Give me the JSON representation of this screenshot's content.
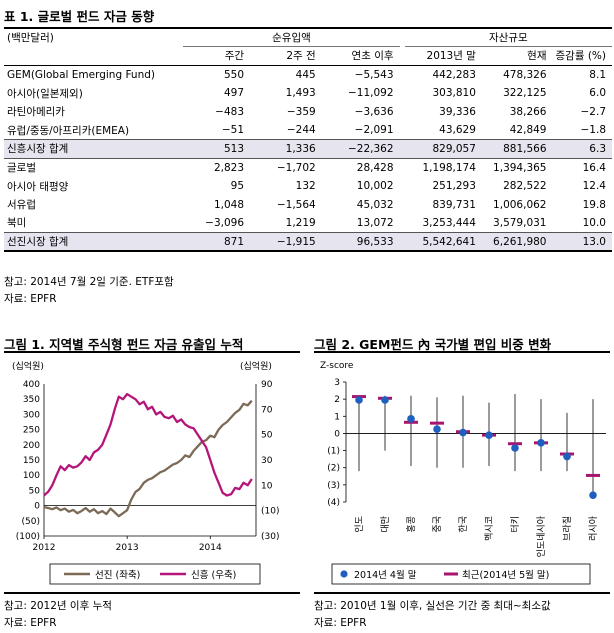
{
  "table1": {
    "title": "표 1. 글로벌 펀드 자금 동향",
    "unit": "(백만달러)",
    "group_headers": [
      "순유입액",
      "자산규모"
    ],
    "columns": [
      "주간",
      "2주 전",
      "연초 이후",
      "2013년 말",
      "현재",
      "증감률 (%)"
    ],
    "rows": [
      {
        "name": "GEM(Global Emerging Fund)",
        "v": [
          "550",
          "445",
          "−5,543",
          "442,283",
          "478,326",
          "8.1"
        ],
        "sum": false
      },
      {
        "name": "아시아(일본제외)",
        "v": [
          "497",
          "1,493",
          "−11,092",
          "303,810",
          "322,125",
          "6.0"
        ],
        "sum": false
      },
      {
        "name": "라틴아메리카",
        "v": [
          "−483",
          "−359",
          "−3,636",
          "39,336",
          "38,266",
          "−2.7"
        ],
        "sum": false
      },
      {
        "name": "유럽/중동/아프리카(EMEA)",
        "v": [
          "−51",
          "−244",
          "−2,091",
          "43,629",
          "42,849",
          "−1.8"
        ],
        "sum": false
      },
      {
        "name": "신흥시장 합계",
        "v": [
          "513",
          "1,336",
          "−22,362",
          "829,057",
          "881,566",
          "6.3"
        ],
        "sum": true
      },
      {
        "name": "글로벌",
        "v": [
          "2,823",
          "−1,702",
          "28,428",
          "1,198,174",
          "1,394,365",
          "16.4"
        ],
        "sum": false
      },
      {
        "name": "아시아 태평양",
        "v": [
          "95",
          "132",
          "10,002",
          "251,293",
          "282,522",
          "12.4"
        ],
        "sum": false
      },
      {
        "name": "서유럽",
        "v": [
          "1,048",
          "−1,564",
          "45,032",
          "839,731",
          "1,006,062",
          "19.8"
        ],
        "sum": false
      },
      {
        "name": "북미",
        "v": [
          "−3,096",
          "1,219",
          "13,072",
          "3,253,444",
          "3,579,031",
          "10.0"
        ],
        "sum": false
      },
      {
        "name": "선진시장 합계",
        "v": [
          "871",
          "−1,915",
          "96,533",
          "5,542,641",
          "6,261,980",
          "13.0"
        ],
        "sum": true
      }
    ],
    "note": "참고: 2014년 7월 2일 기준. ETF포함",
    "source": "자료: EPFR"
  },
  "figure1": {
    "title": "그림 1. 지역별 주식형 펀드 자금 유출입 누적",
    "note": "참고: 2012년 이후 누적",
    "source": "자료: EPFR"
  },
  "figure2": {
    "title": "그림 2. GEM펀드 內 국가별 편입 비중 변화",
    "note": "참고: 2010년 1월 이후, 실선은 기간 중 최대~최소값",
    "source": "자료: EPFR"
  },
  "chart_data": [
    {
      "type": "line",
      "left_axis_label": "(십억원)",
      "right_axis_label": "(십억원)",
      "y_left_ticks": [
        "400",
        "350",
        "300",
        "250",
        "200",
        "150",
        "100",
        "50",
        "0",
        "(50)",
        "(100)"
      ],
      "y_right_ticks": [
        "90",
        "70",
        "50",
        "30",
        "10",
        "(10)",
        "(30)"
      ],
      "ylim_left": [
        -100,
        400
      ],
      "ylim_right": [
        -30,
        90
      ],
      "x_ticks": [
        "2012",
        "2013",
        "2014"
      ],
      "xlim": [
        2012.0,
        2014.55
      ],
      "legend": [
        "선진 (좌축)",
        "신흥 (우축)"
      ],
      "colors": {
        "developed": "#7b6a56",
        "emerging": "#b5157a"
      },
      "series": [
        {
          "name": "선진 (좌축)",
          "axis": "left",
          "x": [
            2012.0,
            2012.05,
            2012.1,
            2012.15,
            2012.2,
            2012.25,
            2012.3,
            2012.35,
            2012.4,
            2012.45,
            2012.5,
            2012.55,
            2012.6,
            2012.65,
            2012.7,
            2012.75,
            2012.8,
            2012.85,
            2012.9,
            2012.95,
            2013.0,
            2013.05,
            2013.1,
            2013.15,
            2013.2,
            2013.25,
            2013.3,
            2013.35,
            2013.4,
            2013.45,
            2013.5,
            2013.55,
            2013.6,
            2013.65,
            2013.7,
            2013.75,
            2013.8,
            2013.85,
            2013.9,
            2013.95,
            2014.0,
            2014.05,
            2014.1,
            2014.15,
            2014.2,
            2014.25,
            2014.3,
            2014.35,
            2014.4,
            2014.45,
            2014.5
          ],
          "y": [
            -5,
            -8,
            -12,
            -6,
            -15,
            -10,
            -20,
            -14,
            -25,
            -18,
            -8,
            -20,
            -12,
            -25,
            -18,
            -28,
            -10,
            -22,
            -35,
            -25,
            -15,
            20,
            45,
            55,
            75,
            85,
            90,
            100,
            110,
            115,
            125,
            135,
            140,
            150,
            165,
            160,
            180,
            195,
            210,
            215,
            230,
            225,
            250,
            265,
            275,
            290,
            305,
            315,
            335,
            330,
            345
          ]
        },
        {
          "name": "신흥 (우축)",
          "axis": "right",
          "x": [
            2012.0,
            2012.05,
            2012.1,
            2012.15,
            2012.2,
            2012.25,
            2012.3,
            2012.35,
            2012.4,
            2012.45,
            2012.5,
            2012.55,
            2012.6,
            2012.65,
            2012.7,
            2012.75,
            2012.8,
            2012.85,
            2012.9,
            2012.95,
            2013.0,
            2013.05,
            2013.1,
            2013.15,
            2013.2,
            2013.25,
            2013.3,
            2013.35,
            2013.4,
            2013.45,
            2013.5,
            2013.55,
            2013.6,
            2013.65,
            2013.7,
            2013.75,
            2013.8,
            2013.85,
            2013.9,
            2013.95,
            2014.0,
            2014.05,
            2014.1,
            2014.15,
            2014.2,
            2014.25,
            2014.3,
            2014.35,
            2014.4,
            2014.45,
            2014.5
          ],
          "y": [
            2,
            5,
            10,
            18,
            25,
            22,
            26,
            24,
            25,
            28,
            33,
            30,
            36,
            38,
            42,
            50,
            58,
            70,
            80,
            78,
            82,
            80,
            78,
            74,
            76,
            70,
            72,
            66,
            68,
            64,
            63,
            65,
            60,
            62,
            58,
            56,
            55,
            50,
            45,
            40,
            30,
            20,
            12,
            4,
            2,
            3,
            8,
            7,
            12,
            10,
            15
          ]
        }
      ]
    },
    {
      "type": "scatter",
      "y_axis_label": "Z-score",
      "y_ticks": [
        "3",
        "2",
        "1",
        "0",
        "(1)",
        "(2)",
        "(3)",
        "(4)"
      ],
      "ylim": [
        -4,
        3
      ],
      "categories": [
        "인도",
        "대만",
        "홍콩",
        "중국",
        "한국",
        "멕시코",
        "터키",
        "인도네시아",
        "브라질",
        "러시아"
      ],
      "series": [
        {
          "name": "2014년 4월 말",
          "values": [
            1.95,
            1.95,
            0.85,
            0.25,
            0.05,
            -0.1,
            -0.85,
            -0.55,
            -1.35,
            -3.6
          ]
        },
        {
          "name": "최근(2014년 5월 말)",
          "values": [
            2.15,
            2.05,
            0.65,
            0.6,
            0.1,
            -0.1,
            -0.6,
            -0.55,
            -1.2,
            -2.45
          ]
        }
      ],
      "ranges": [
        [
          -2.2,
          2.2
        ],
        [
          -1.0,
          2.2
        ],
        [
          -1.9,
          2.2
        ],
        [
          -2.0,
          2.1
        ],
        [
          -2.0,
          2.2
        ],
        [
          -1.9,
          1.8
        ],
        [
          -2.2,
          2.3
        ],
        [
          -2.2,
          2.0
        ],
        [
          -2.2,
          1.2
        ],
        [
          -3.8,
          2.0
        ]
      ],
      "legend": [
        "2014년 4월 말",
        "최근(2014년 5월 말)"
      ],
      "colors": {
        "april": "#1f5fbf",
        "may": "#a8156e"
      }
    }
  ]
}
